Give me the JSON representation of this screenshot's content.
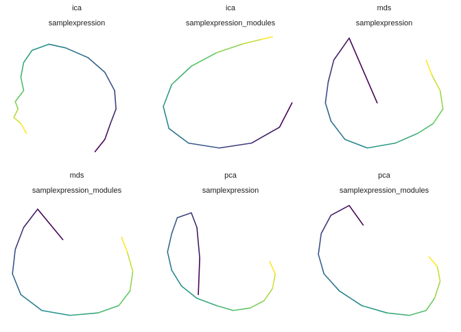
{
  "figure": {
    "colors": [
      "#440154",
      "#3b528b",
      "#21918c",
      "#5ec962",
      "#fde725"
    ],
    "colormap": "viridis",
    "grid": false,
    "axes_visible": false
  },
  "chart_data": [
    {
      "type": "line",
      "title": "ica",
      "subtitle": "samplexpression",
      "x": [
        0.63,
        0.7,
        0.74,
        0.78,
        0.77,
        0.7,
        0.58,
        0.42,
        0.3,
        0.18,
        0.12,
        0.1,
        0.12,
        0.06,
        0.08,
        0.05,
        0.1,
        0.14
      ],
      "y": [
        0.05,
        0.15,
        0.28,
        0.4,
        0.55,
        0.7,
        0.82,
        0.9,
        0.93,
        0.88,
        0.78,
        0.66,
        0.55,
        0.46,
        0.4,
        0.33,
        0.28,
        0.2
      ],
      "color_order": "trajectory"
    },
    {
      "type": "line",
      "title": "ica",
      "subtitle": "samplexpression_modules",
      "x": [
        0.94,
        0.85,
        0.65,
        0.42,
        0.2,
        0.06,
        0.02,
        0.08,
        0.22,
        0.4,
        0.58,
        0.72,
        0.8
      ],
      "y": [
        0.45,
        0.25,
        0.12,
        0.08,
        0.12,
        0.24,
        0.42,
        0.6,
        0.75,
        0.86,
        0.93,
        0.97,
        0.99
      ],
      "color_order": "trajectory"
    },
    {
      "type": "line",
      "title": "mds",
      "subtitle": "samplexpression",
      "x": [
        0.45,
        0.25,
        0.14,
        0.1,
        0.08,
        0.12,
        0.22,
        0.38,
        0.58,
        0.74,
        0.85,
        0.92,
        0.9,
        0.84,
        0.8
      ],
      "y": [
        0.45,
        0.98,
        0.8,
        0.62,
        0.45,
        0.3,
        0.15,
        0.08,
        0.12,
        0.2,
        0.28,
        0.4,
        0.55,
        0.68,
        0.8
      ],
      "color_order": "trajectory"
    },
    {
      "type": "line",
      "title": "mds",
      "subtitle": "samplexpression_modules",
      "x": [
        0.4,
        0.22,
        0.12,
        0.06,
        0.04,
        0.1,
        0.25,
        0.45,
        0.65,
        0.8,
        0.88,
        0.9,
        0.86,
        0.82
      ],
      "y": [
        0.7,
        0.95,
        0.8,
        0.62,
        0.42,
        0.25,
        0.12,
        0.08,
        0.1,
        0.16,
        0.28,
        0.44,
        0.6,
        0.72
      ],
      "color_order": "trajectory"
    },
    {
      "type": "line",
      "title": "pca",
      "subtitle": "samplexpression",
      "x": [
        0.27,
        0.28,
        0.26,
        0.22,
        0.12,
        0.08,
        0.05,
        0.08,
        0.15,
        0.26,
        0.4,
        0.52,
        0.64,
        0.74,
        0.8,
        0.82,
        0.78
      ],
      "y": [
        0.25,
        0.55,
        0.8,
        0.92,
        0.88,
        0.75,
        0.6,
        0.45,
        0.32,
        0.22,
        0.16,
        0.12,
        0.14,
        0.2,
        0.3,
        0.42,
        0.52
      ],
      "color_order": "trajectory"
    },
    {
      "type": "line",
      "title": "pca",
      "subtitle": "samplexpression_modules",
      "x": [
        0.35,
        0.25,
        0.12,
        0.05,
        0.03,
        0.07,
        0.18,
        0.34,
        0.52,
        0.68,
        0.8,
        0.86,
        0.9,
        0.88,
        0.82
      ],
      "y": [
        0.82,
        0.98,
        0.9,
        0.75,
        0.58,
        0.42,
        0.28,
        0.16,
        0.1,
        0.08,
        0.12,
        0.22,
        0.36,
        0.48,
        0.56
      ],
      "color_order": "trajectory"
    }
  ]
}
